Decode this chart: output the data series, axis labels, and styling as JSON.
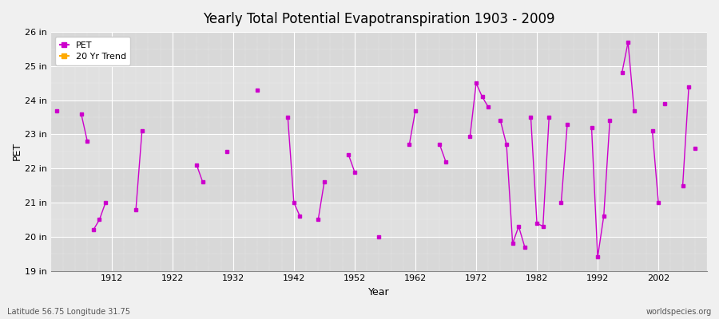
{
  "title": "Yearly Total Potential Evapotranspiration 1903 - 2009",
  "xlabel": "Year",
  "ylabel": "PET",
  "background_color": "#f0f0f0",
  "plot_bg_color": "#dcdcdc",
  "line_color": "#cc00cc",
  "trend_color": "#ffaa00",
  "ylim": [
    19,
    26
  ],
  "yticks": [
    19,
    20,
    21,
    22,
    23,
    24,
    25,
    26
  ],
  "ytick_labels": [
    "19 in",
    "20 in",
    "21 in",
    "22 in",
    "23 in",
    "24 in",
    "25 in",
    "26 in"
  ],
  "xlim": [
    1902,
    2010
  ],
  "xticks": [
    1912,
    1922,
    1932,
    1942,
    1952,
    1962,
    1972,
    1982,
    1992,
    2002
  ],
  "footer_left": "Latitude 56.75 Longitude 31.75",
  "footer_right": "worldspecies.org",
  "legend_labels": [
    "PET",
    "20 Yr Trend"
  ],
  "segments": [
    {
      "years": [
        1903,
        1904
      ],
      "values": [
        23.7,
        null
      ]
    },
    {
      "years": [
        1907,
        1908
      ],
      "values": [
        23.6,
        22.8
      ]
    },
    {
      "years": [
        1909,
        1910,
        1911
      ],
      "values": [
        20.2,
        20.5,
        21.0
      ]
    },
    {
      "years": [
        1916,
        1917
      ],
      "values": [
        20.8,
        23.1
      ]
    },
    {
      "years": [
        1926,
        1927
      ],
      "values": [
        22.1,
        21.6
      ]
    },
    {
      "years": [
        1931
      ],
      "values": [
        22.5
      ]
    },
    {
      "years": [
        1936
      ],
      "values": [
        24.3
      ]
    },
    {
      "years": [
        1941,
        1942,
        1943
      ],
      "values": [
        23.5,
        21.0,
        20.6
      ]
    },
    {
      "years": [
        1946,
        1947
      ],
      "values": [
        20.5,
        21.6
      ]
    },
    {
      "years": [
        1951,
        1952
      ],
      "values": [
        22.4,
        21.9
      ]
    },
    {
      "years": [
        1956
      ],
      "values": [
        20.0
      ]
    },
    {
      "years": [
        1961,
        1962
      ],
      "values": [
        22.7,
        23.7
      ]
    },
    {
      "years": [
        1966,
        1967
      ],
      "values": [
        22.7,
        22.2
      ]
    },
    {
      "years": [
        1971,
        1972,
        1973,
        1974
      ],
      "values": [
        22.95,
        24.5,
        24.1,
        23.8
      ]
    },
    {
      "years": [
        1976,
        1977,
        1978,
        1979,
        1980
      ],
      "values": [
        23.4,
        22.7,
        19.8,
        20.3,
        19.7
      ]
    },
    {
      "years": [
        1981,
        1982,
        1983,
        1984
      ],
      "values": [
        23.5,
        20.4,
        20.3,
        23.5
      ]
    },
    {
      "years": [
        1986,
        1987
      ],
      "values": [
        21.0,
        23.3
      ]
    },
    {
      "years": [
        1991,
        1992,
        1993,
        1994
      ],
      "values": [
        23.2,
        19.4,
        20.6,
        23.4
      ]
    },
    {
      "years": [
        1996,
        1997,
        1998
      ],
      "values": [
        24.8,
        25.7,
        23.7
      ]
    },
    {
      "years": [
        2001,
        2002
      ],
      "values": [
        23.1,
        21.0
      ]
    },
    {
      "years": [
        2003
      ],
      "values": [
        23.9
      ]
    },
    {
      "years": [
        2006,
        2007
      ],
      "values": [
        21.5,
        24.4
      ]
    },
    {
      "years": [
        2008
      ],
      "values": [
        22.6
      ]
    }
  ],
  "isolated_points": [
    [
      1903,
      23.7
    ],
    [
      1907,
      23.6
    ],
    [
      1931,
      22.5
    ],
    [
      1936,
      24.3
    ],
    [
      1956,
      20.0
    ],
    [
      2003,
      23.9
    ],
    [
      2008,
      22.6
    ]
  ]
}
